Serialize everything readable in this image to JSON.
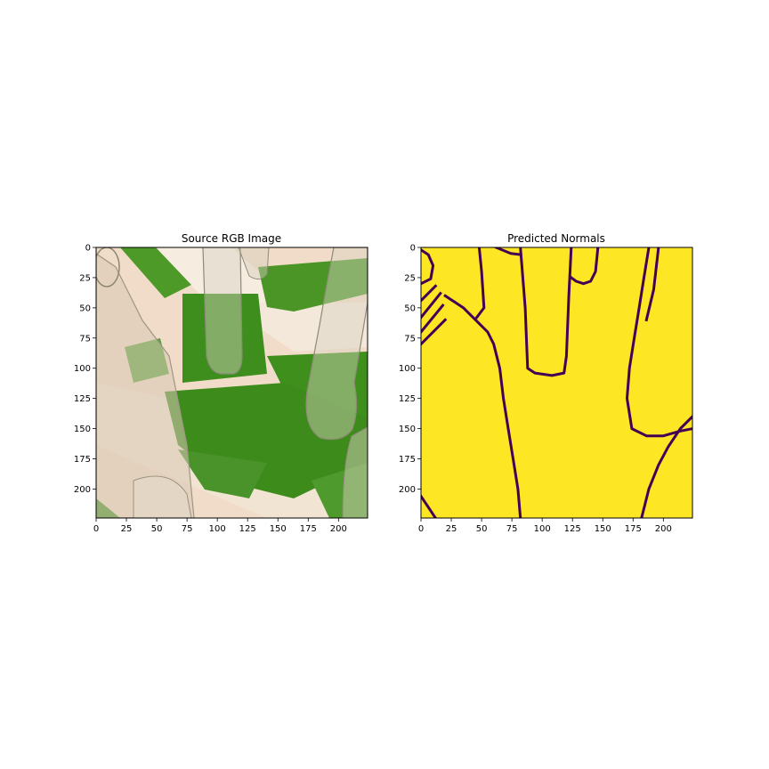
{
  "chart_data": [
    {
      "type": "image",
      "title": "Source RGB Image",
      "xlim": [
        0,
        224
      ],
      "ylim": [
        224,
        0
      ],
      "xticks": [
        0,
        25,
        50,
        75,
        100,
        125,
        150,
        175,
        200
      ],
      "yticks": [
        0,
        25,
        50,
        75,
        100,
        125,
        150,
        175,
        200
      ],
      "colors": {
        "shadow": "#3f8f1c",
        "light": "#f3e6d4",
        "peach": "#e8c8b0",
        "glass": "#bfb8a4"
      }
    },
    {
      "type": "heatmap",
      "title": "Predicted Normals",
      "xlim": [
        0,
        224
      ],
      "ylim": [
        224,
        0
      ],
      "xticks": [
        0,
        25,
        50,
        75,
        100,
        125,
        150,
        175,
        200
      ],
      "yticks": [
        0,
        25,
        50,
        75,
        100,
        125,
        150,
        175,
        200
      ],
      "colormap": "viridis",
      "colors": {
        "fill": "#fde725",
        "edge": "#440154"
      },
      "edges": [
        [
          [
            48,
            0
          ],
          [
            50,
            20
          ],
          [
            52,
            50
          ],
          [
            46,
            58
          ]
        ],
        [
          [
            20,
            40
          ],
          [
            35,
            50
          ],
          [
            45,
            60
          ],
          [
            55,
            70
          ],
          [
            60,
            80
          ],
          [
            65,
            100
          ],
          [
            68,
            125
          ],
          [
            72,
            150
          ],
          [
            76,
            175
          ],
          [
            80,
            200
          ],
          [
            82,
            224
          ]
        ],
        [
          [
            62,
            0
          ],
          [
            74,
            5
          ],
          [
            82,
            6
          ]
        ],
        [
          [
            82,
            0
          ],
          [
            86,
            50
          ],
          [
            88,
            100
          ],
          [
            94,
            104
          ],
          [
            108,
            106
          ],
          [
            118,
            104
          ],
          [
            120,
            90
          ],
          [
            122,
            40
          ],
          [
            124,
            0
          ]
        ],
        [
          [
            124,
            25
          ],
          [
            128,
            28
          ],
          [
            134,
            30
          ],
          [
            140,
            28
          ],
          [
            144,
            20
          ],
          [
            146,
            0
          ]
        ],
        [
          [
            188,
            0
          ],
          [
            184,
            25
          ],
          [
            180,
            50
          ],
          [
            176,
            75
          ],
          [
            172,
            100
          ],
          [
            170,
            125
          ],
          [
            174,
            150
          ],
          [
            186,
            156
          ],
          [
            200,
            156
          ],
          [
            214,
            152
          ],
          [
            224,
            150
          ]
        ],
        [
          [
            196,
            0
          ],
          [
            192,
            35
          ],
          [
            186,
            60
          ]
        ],
        [
          [
            224,
            140
          ],
          [
            214,
            150
          ],
          [
            204,
            165
          ],
          [
            196,
            180
          ],
          [
            188,
            200
          ],
          [
            182,
            224
          ]
        ],
        [
          [
            0,
            206
          ],
          [
            6,
            215
          ],
          [
            12,
            224
          ]
        ],
        [
          [
            0,
            2
          ],
          [
            6,
            6
          ],
          [
            10,
            15
          ],
          [
            8,
            26
          ],
          [
            0,
            30
          ]
        ],
        [
          [
            0,
            44
          ],
          [
            12,
            32
          ]
        ],
        [
          [
            0,
            58
          ],
          [
            16,
            38
          ]
        ],
        [
          [
            0,
            70
          ],
          [
            18,
            48
          ]
        ],
        [
          [
            0,
            80
          ],
          [
            20,
            60
          ]
        ]
      ]
    }
  ]
}
